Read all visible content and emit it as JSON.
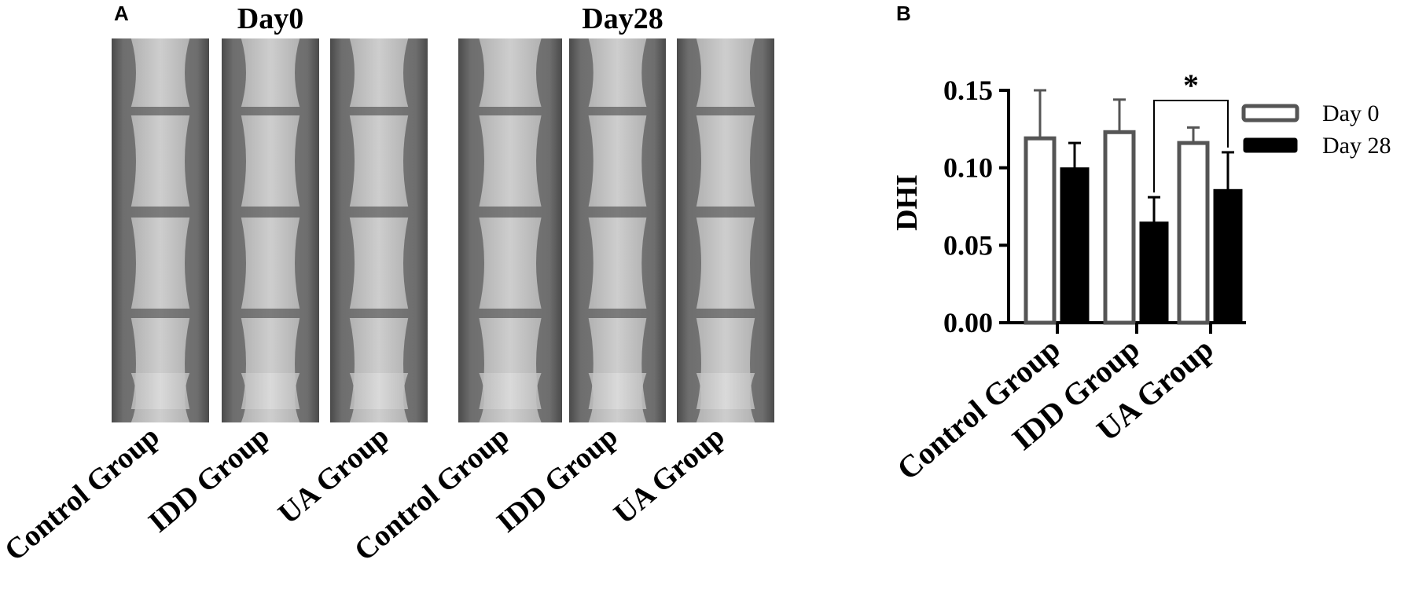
{
  "panel_a": {
    "letter": "A",
    "day_titles": [
      "Day0",
      "Day28"
    ],
    "xray_labels": [
      "Control Group",
      "IDD Group",
      "UA Group",
      "Control Group",
      "IDD Group",
      "UA Group"
    ]
  },
  "panel_b": {
    "letter": "B"
  },
  "chart_data": {
    "type": "bar",
    "categories": [
      "Control Group",
      "IDD Group",
      "UA Group"
    ],
    "series": [
      {
        "name": "Day 0",
        "values": [
          0.119,
          0.123,
          0.116
        ],
        "errors": [
          0.031,
          0.021,
          0.01
        ],
        "fill": "#ffffff",
        "stroke": "#555555"
      },
      {
        "name": "Day 28",
        "values": [
          0.1,
          0.065,
          0.086
        ],
        "errors": [
          0.016,
          0.016,
          0.024
        ],
        "fill": "#000000",
        "stroke": "#000000"
      }
    ],
    "xlabel": "",
    "ylabel": "DHI",
    "ylim": [
      0,
      0.15
    ],
    "yticks": [
      "0.00",
      "0.05",
      "0.10",
      "0.15"
    ],
    "annotations": [
      {
        "text": "*",
        "between": [
          "IDD Group / Day 28",
          "UA Group / Day 28"
        ]
      }
    ],
    "legend": "top-right",
    "grid": false
  }
}
